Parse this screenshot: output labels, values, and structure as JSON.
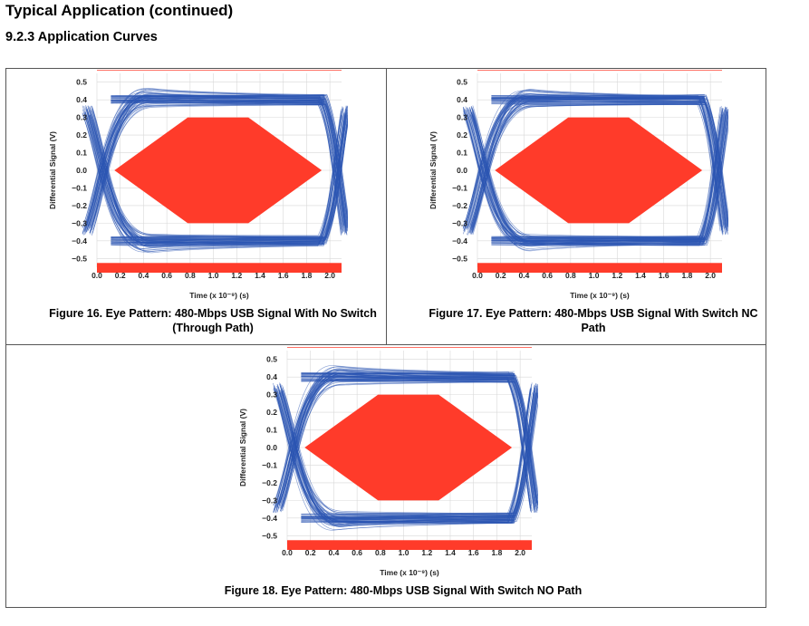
{
  "page": {
    "heading": "Typical Application  (continued)",
    "section": "9.2.3   Application Curves"
  },
  "colors": {
    "trace": "#2b55b3",
    "mask": "#ff3b2a",
    "grid": "#d8d8d8"
  },
  "chart_data": [
    {
      "type": "scatter",
      "title": "",
      "caption": "Figure 16. Eye Pattern: 480-Mbps USB Signal With No Switch (Through Path)",
      "xlabel": "Time (x 10⁻⁹) (s)",
      "ylabel": "Differential Signal (V)",
      "xlim": [
        0,
        2.1
      ],
      "ylim": [
        -0.55,
        0.55
      ],
      "xticks": [
        "0.0",
        "0.2",
        "0.4",
        "0.6",
        "0.8",
        "1.0",
        "1.2",
        "1.4",
        "1.6",
        "1.8",
        "2.0"
      ],
      "yticks": [
        "0.5",
        "0.4",
        "0.3",
        "0.2",
        "0.1",
        "0.0",
        "−0.1",
        "−0.2",
        "−0.3",
        "−0.4",
        "−0.5"
      ],
      "grid": true,
      "eye": {
        "high_level": 0.4,
        "low_level": -0.4,
        "crossings": [
          0.0,
          2.05
        ]
      },
      "mask": {
        "hexagon": [
          [
            0.15,
            0.0
          ],
          [
            0.78,
            0.3
          ],
          [
            1.3,
            0.3
          ],
          [
            1.93,
            0.0
          ],
          [
            1.3,
            -0.3
          ],
          [
            0.78,
            -0.3
          ]
        ],
        "top_bar": [
          0.5,
          0.55
        ],
        "bottom_bar": [
          -0.55,
          -0.5
        ]
      }
    },
    {
      "type": "scatter",
      "title": "",
      "caption": "Figure 17. Eye Pattern: 480-Mbps USB Signal With Switch NC Path",
      "xlabel": "Time (x 10⁻⁹) (s)",
      "ylabel": "Differential Signal (V)",
      "xlim": [
        0,
        2.1
      ],
      "ylim": [
        -0.55,
        0.55
      ],
      "xticks": [
        "0.0",
        "0.2",
        "0.4",
        "0.6",
        "0.8",
        "1.0",
        "1.2",
        "1.4",
        "1.6",
        "1.8",
        "2.0"
      ],
      "yticks": [
        "0.5",
        "0.4",
        "0.3",
        "0.2",
        "0.1",
        "0.0",
        "−0.1",
        "−0.2",
        "−0.3",
        "−0.4",
        "−0.5"
      ],
      "grid": true,
      "eye": {
        "high_level": 0.4,
        "low_level": -0.4,
        "crossings": [
          0.0,
          2.05
        ]
      },
      "mask": {
        "hexagon": [
          [
            0.15,
            0.0
          ],
          [
            0.78,
            0.3
          ],
          [
            1.3,
            0.3
          ],
          [
            1.93,
            0.0
          ],
          [
            1.3,
            -0.3
          ],
          [
            0.78,
            -0.3
          ]
        ],
        "top_bar": [
          0.5,
          0.55
        ],
        "bottom_bar": [
          -0.55,
          -0.5
        ]
      }
    },
    {
      "type": "scatter",
      "title": "",
      "caption": "Figure 18. Eye Pattern: 480-Mbps USB Signal With Switch NO Path",
      "xlabel": "Time (x 10⁻⁹) (s)",
      "ylabel": "Differential Signal (V)",
      "xlim": [
        0,
        2.1
      ],
      "ylim": [
        -0.55,
        0.55
      ],
      "xticks": [
        "0.0",
        "0.2",
        "0.4",
        "0.6",
        "0.8",
        "1.0",
        "1.2",
        "1.4",
        "1.6",
        "1.8",
        "2.0"
      ],
      "yticks": [
        "0.5",
        "0.4",
        "0.3",
        "0.2",
        "0.1",
        "0.0",
        "−0.1",
        "−0.2",
        "−0.3",
        "−0.4",
        "−0.5"
      ],
      "grid": true,
      "eye": {
        "high_level": 0.4,
        "low_level": -0.4,
        "crossings": [
          0.0,
          2.05
        ]
      },
      "mask": {
        "hexagon": [
          [
            0.15,
            0.0
          ],
          [
            0.78,
            0.3
          ],
          [
            1.3,
            0.3
          ],
          [
            1.93,
            0.0
          ],
          [
            1.3,
            -0.3
          ],
          [
            0.78,
            -0.3
          ]
        ],
        "top_bar": [
          0.5,
          0.55
        ],
        "bottom_bar": [
          -0.55,
          -0.5
        ]
      }
    }
  ]
}
